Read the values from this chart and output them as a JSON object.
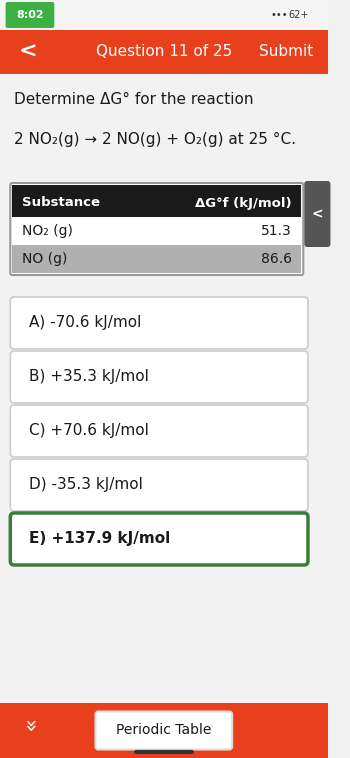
{
  "time": "8:02",
  "battery": "62+",
  "nav_title": "Question 11 of 25",
  "nav_submit": "Submit",
  "nav_bg": "#E8401C",
  "nav_text_color": "#ffffff",
  "status_bar_bg": "#f5f5f5",
  "page_bg": "#f0f0f0",
  "question_title": "Determine ΔG° for the reaction",
  "reaction_line": "2 NO₂(g) → 2 NO(g) + O₂(g) at 25 °C.",
  "table_header": [
    "Substance",
    "ΔG°f (kJ/mol)"
  ],
  "table_rows": [
    [
      "NO₂ (g)",
      "51.3"
    ],
    [
      "NO (g)",
      "86.6"
    ]
  ],
  "table_row_colors": [
    "#ffffff",
    "#b0b0b0"
  ],
  "table_header_bg": "#1a1a1a",
  "table_header_color": "#ffffff",
  "options": [
    "A) -70.6 kJ/mol",
    "B) +35.3 kJ/mol",
    "C) +70.6 kJ/mol",
    "D) -35.3 kJ/mol",
    "E) +137.9 kJ/mol"
  ],
  "option_selected": 4,
  "option_selected_border": "#3a7d3a",
  "option_selected_text_weight": "bold",
  "option_border": "#cccccc",
  "option_bg": "#ffffff",
  "option_text_color": "#1a1a1a",
  "bottom_bar_bg": "#E8401C",
  "periodic_table_btn": "Periodic Table",
  "periodic_table_btn_bg": "#ffffff",
  "periodic_table_btn_border": "#ffffff",
  "scrollbar_tab_color": "#555555",
  "right_panel_color": "#555555",
  "fig_width": 3.5,
  "fig_height": 7.58,
  "dpi": 100
}
